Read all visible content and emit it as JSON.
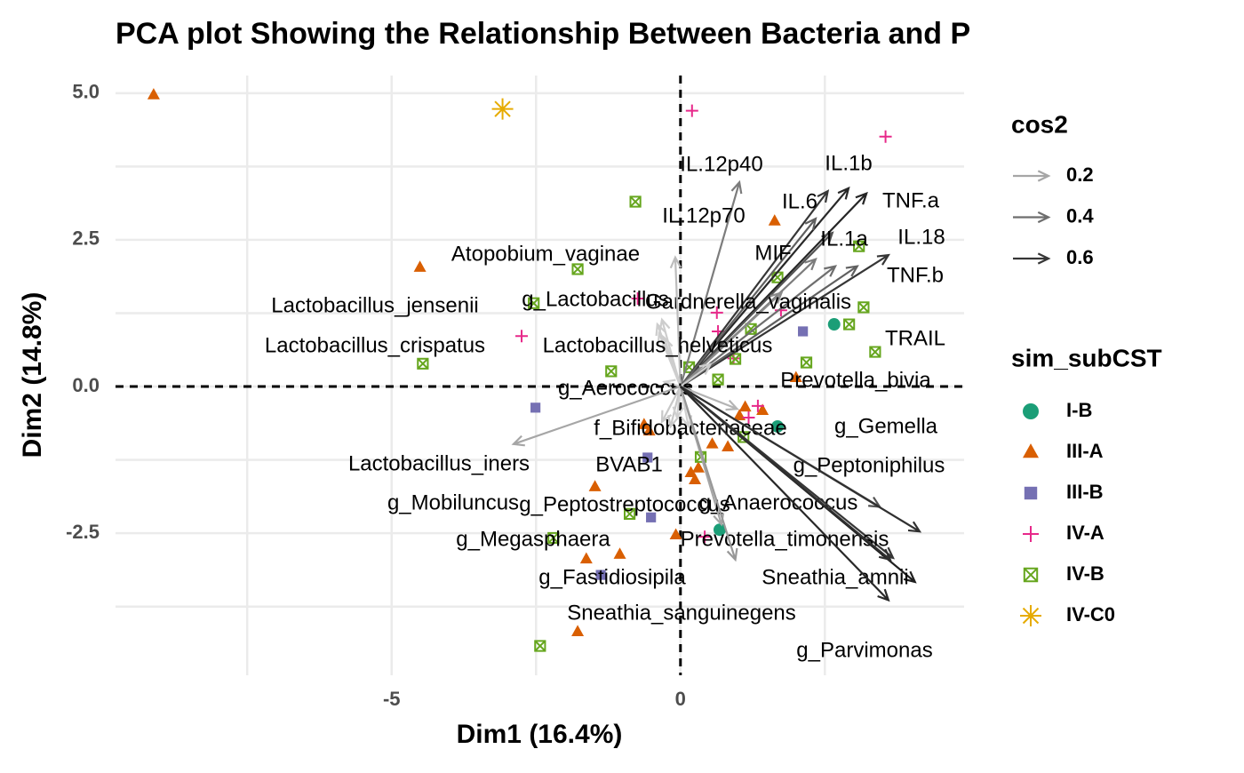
{
  "chart_data": {
    "type": "biplot",
    "title": "PCA plot Showing the Relationship Between Bacteria and P",
    "x_label": "Dim1 (16.4%)",
    "y_label": "Dim2 (14.8%)",
    "xlim": [
      -9.78,
      4.91
    ],
    "ylim": [
      -4.92,
      5.3
    ],
    "xticks": [
      -5,
      0
    ],
    "yticks": [
      {
        "value": 5,
        "label": "5.0"
      },
      {
        "value": 2.5,
        "label": "2.5"
      },
      {
        "value": 0,
        "label": "0.0"
      },
      {
        "value": -2.5,
        "label": "-2.5"
      }
    ],
    "x_gridlines": [
      -7.5,
      -5,
      -2.5,
      0,
      2.5
    ],
    "y_gridlines": [
      5,
      3.75,
      2.5,
      1.25,
      0,
      -1.25,
      -2.5,
      -3.75
    ],
    "grid": true,
    "cos2_legend_title": "cos2",
    "cos2_legend": [
      0.2,
      0.4,
      0.6
    ],
    "cos2_range": [
      0.05,
      0.7
    ],
    "cos2_colors": [
      "#d0d0d0",
      "#1a1a1a"
    ],
    "variables": [
      {
        "name": "IL.12p40",
        "x": 1.02,
        "y": 3.48,
        "cos2": 0.35
      },
      {
        "name": "IL.1b",
        "x": 2.91,
        "y": 3.38,
        "cos2": 0.65
      },
      {
        "name": "IL.6",
        "x": 2.55,
        "y": 3.33,
        "cos2": 0.6
      },
      {
        "name": "TNF.a",
        "x": 3.22,
        "y": 3.29,
        "cos2": 0.66
      },
      {
        "name": "IL.12p70",
        "x": 2.34,
        "y": 2.86,
        "cos2": 0.45
      },
      {
        "name": "IL.1a",
        "x": 2.63,
        "y": 2.62,
        "cos2": 0.5
      },
      {
        "name": "IL.18",
        "x": 3.6,
        "y": 2.24,
        "cos2": 0.6
      },
      {
        "name": "MIF",
        "x": 2.34,
        "y": 2.17,
        "cos2": 0.35
      },
      {
        "name": "TNF.b",
        "x": 3.06,
        "y": 2.05,
        "cos2": 0.45
      },
      {
        "name": "TRAIL",
        "x": 2.68,
        "y": 2.05,
        "cos2": 0.4
      },
      {
        "name": "Gardnerella_vaginalis",
        "x": 1.75,
        "y": 1.6,
        "cos2": 0.3
      },
      {
        "name": "Atopobium_vaginae",
        "x": -0.09,
        "y": 2.2,
        "cos2": 0.12
      },
      {
        "name": "g_Lactobacillus",
        "x": -0.32,
        "y": 1.14,
        "cos2": 0.06
      },
      {
        "name": "Lactobacillus_jensenii",
        "x": -0.4,
        "y": 1.06,
        "cos2": 0.06
      },
      {
        "name": "Lactobacillus_crispatus",
        "x": -0.37,
        "y": 0.91,
        "cos2": 0.06
      },
      {
        "name": "Lactobacillus_helveticus",
        "x": -0.28,
        "y": 0.83,
        "cos2": 0.06
      },
      {
        "name": "Prevotella_bivia",
        "x": 0.52,
        "y": 0.38,
        "cos2": 0.06
      },
      {
        "name": "g_Aerococcus",
        "x": -0.28,
        "y": 0.08,
        "cos2": 0.05
      },
      {
        "name": "Lactobacillus_iners",
        "x": -2.89,
        "y": -0.98,
        "cos2": 0.2
      },
      {
        "name": "f_Bifidobacteriaceae",
        "x": -0.32,
        "y": -0.6,
        "cos2": 0.08
      },
      {
        "name": "BVAB1",
        "x": -0.17,
        "y": -0.68,
        "cos2": 0.08
      },
      {
        "name": "g_Gemella",
        "x": 0.98,
        "y": -0.38,
        "cos2": 0.15
      },
      {
        "name": "g_Peptoniphilus",
        "x": 3.45,
        "y": -2.05,
        "cos2": 0.5
      },
      {
        "name": "g_Anaerococcus",
        "x": 4.14,
        "y": -2.47,
        "cos2": 0.62
      },
      {
        "name": "g_Mobiluncus",
        "x": -0.06,
        "y": -0.53,
        "cos2": 0.05
      },
      {
        "name": "g_Peptostreptococcus",
        "x": 0.71,
        "y": -2.35,
        "cos2": 0.2
      },
      {
        "name": "g_Megasphaera",
        "x": 0.14,
        "y": -0.68,
        "cos2": 0.05
      },
      {
        "name": "Prevotella_timonensis",
        "x": 3.68,
        "y": -2.92,
        "cos2": 0.6
      },
      {
        "name": "g_Fastidiosipila",
        "x": 0.95,
        "y": -2.95,
        "cos2": 0.25
      },
      {
        "name": "Sneathia_amnii",
        "x": 4.06,
        "y": -3.33,
        "cos2": 0.68
      },
      {
        "name": "Sneathia_sanguinegens",
        "x": 3.63,
        "y": -2.95,
        "cos2": 0.62
      },
      {
        "name": "g_Parvimonas",
        "x": 3.6,
        "y": -3.64,
        "cos2": 0.65
      }
    ],
    "group_legend_title": "sim_subCST",
    "series": [
      {
        "name": "I-B",
        "color": "#1b9e77",
        "shape": "circle",
        "x": [
          2.66,
          1.68,
          0.68
        ],
        "y": [
          1.06,
          -0.68,
          -2.44
        ]
      },
      {
        "name": "III-A",
        "color": "#d95f02",
        "shape": "triangle",
        "x": [
          -9.12,
          -4.51,
          1.63,
          2.0,
          -0.63,
          -0.54,
          1.12,
          1.42,
          1.02,
          0.82,
          0.55,
          0.31,
          0.25,
          0.18,
          -1.48,
          -0.08,
          -1.63,
          -1.05,
          -1.78
        ],
        "y": [
          4.97,
          2.03,
          2.82,
          0.15,
          -0.65,
          -0.76,
          -0.35,
          -0.41,
          -0.5,
          -1.03,
          -0.98,
          -1.39,
          -1.59,
          -1.47,
          -1.71,
          -2.53,
          -2.94,
          -2.86,
          -4.18
        ]
      },
      {
        "name": "III-B",
        "color": "#7570b3",
        "shape": "square",
        "x": [
          2.12,
          -2.51,
          -0.57,
          -0.51,
          -1.38
        ],
        "y": [
          0.94,
          -0.36,
          -1.21,
          -2.23,
          -3.21
        ]
      },
      {
        "name": "IV-A",
        "color": "#e7298a",
        "shape": "plus",
        "x": [
          0.2,
          3.55,
          -2.75,
          -0.74,
          0.63,
          0.65,
          1.74,
          0.92,
          1.34,
          1.18,
          0.42
        ],
        "y": [
          4.7,
          4.26,
          0.86,
          1.5,
          1.26,
          0.94,
          1.3,
          0.48,
          -0.33,
          -0.53,
          -2.56
        ]
      },
      {
        "name": "IV-B",
        "color": "#66a61e",
        "shape": "boxx",
        "x": [
          -0.78,
          -1.78,
          -2.54,
          -4.46,
          -1.2,
          3.09,
          1.68,
          1.22,
          2.92,
          3.17,
          3.37,
          2.18,
          0.95,
          0.65,
          0.15,
          1.09,
          0.35,
          -0.88,
          -2.2,
          -2.43
        ],
        "y": [
          3.15,
          2.0,
          1.42,
          0.39,
          0.26,
          2.39,
          1.86,
          0.98,
          1.06,
          1.35,
          0.59,
          0.41,
          0.47,
          0.12,
          0.33,
          -0.86,
          -1.2,
          -2.17,
          -2.58,
          -4.42
        ]
      },
      {
        "name": "IV-C0",
        "color": "#e6ab02",
        "shape": "asterisk",
        "x": [
          -3.08
        ],
        "y": [
          4.73
        ]
      }
    ]
  }
}
